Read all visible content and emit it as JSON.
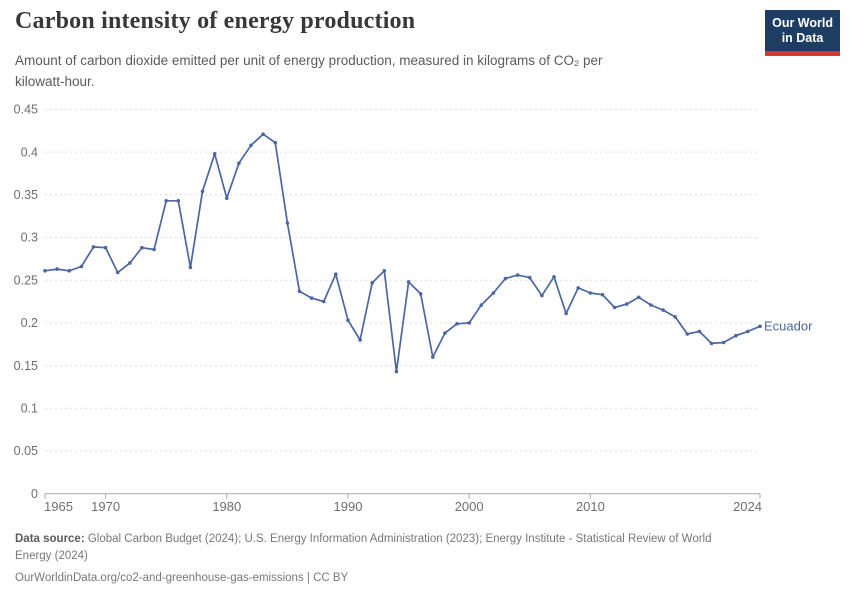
{
  "header": {
    "title": "Carbon intensity of energy production",
    "subtitle_line1": "Amount of carbon dioxide emitted per unit of energy production, measured in kilograms of CO₂ per",
    "subtitle_line2": "kilowatt-hour.",
    "logo_line1": "Our World",
    "logo_line2": "in Data"
  },
  "colors": {
    "series_blue": "#4a67a3",
    "logo_navy": "#1d3d63",
    "logo_red": "#cf3a31",
    "grid_gray": "#dcdcdc",
    "axis_gray": "#a9a9a9",
    "tick_label_gray": "#6f6f6f"
  },
  "chart_data": {
    "type": "line",
    "title": "Carbon intensity of energy production",
    "ylabel": "kilograms of CO₂ per kilowatt-hour",
    "xlim": [
      1965,
      2024
    ],
    "ylim": [
      0,
      0.45
    ],
    "yticks": [
      0,
      0.05,
      0.1,
      0.15,
      0.2,
      0.25,
      0.3,
      0.35,
      0.4,
      0.45
    ],
    "xticks": [
      1965,
      1970,
      1980,
      1990,
      2000,
      2010,
      2024
    ],
    "grid": "horizontal-dashed",
    "legend_position": "right-of-last-point",
    "x": [
      1965,
      1966,
      1967,
      1968,
      1969,
      1970,
      1971,
      1972,
      1973,
      1974,
      1975,
      1976,
      1977,
      1978,
      1979,
      1980,
      1981,
      1982,
      1983,
      1984,
      1985,
      1986,
      1987,
      1988,
      1989,
      1990,
      1991,
      1992,
      1993,
      1994,
      1995,
      1996,
      1997,
      1998,
      1999,
      2000,
      2001,
      2002,
      2003,
      2004,
      2005,
      2006,
      2007,
      2008,
      2009,
      2010,
      2011,
      2012,
      2013,
      2014,
      2015,
      2016,
      2017,
      2018,
      2019,
      2020,
      2021,
      2022,
      2023,
      2024
    ],
    "series": [
      {
        "name": "Ecuador",
        "values": [
          0.261,
          0.263,
          0.261,
          0.266,
          0.289,
          0.288,
          0.259,
          0.27,
          0.288,
          0.286,
          0.343,
          0.343,
          0.265,
          0.354,
          0.398,
          0.346,
          0.387,
          0.408,
          0.421,
          0.411,
          0.317,
          0.237,
          0.229,
          0.225,
          0.257,
          0.203,
          0.18,
          0.247,
          0.261,
          0.143,
          0.248,
          0.234,
          0.16,
          0.188,
          0.199,
          0.2,
          0.221,
          0.235,
          0.252,
          0.256,
          0.253,
          0.232,
          0.254,
          0.211,
          0.241,
          0.235,
          0.233,
          0.218,
          0.222,
          0.23,
          0.221,
          0.215,
          0.207,
          0.187,
          0.19,
          0.176,
          0.177,
          0.185,
          0.19,
          0.196
        ]
      }
    ]
  },
  "footer": {
    "data_source_label": "Data source:",
    "data_source_rest": " Global Carbon Budget (2024); U.S. Energy Information Administration (2023); Energy Institute - Statistical Review of World",
    "data_source_line2": "Energy (2024)",
    "link_line": "OurWorldinData.org/co2-and-greenhouse-gas-emissions | CC BY"
  }
}
